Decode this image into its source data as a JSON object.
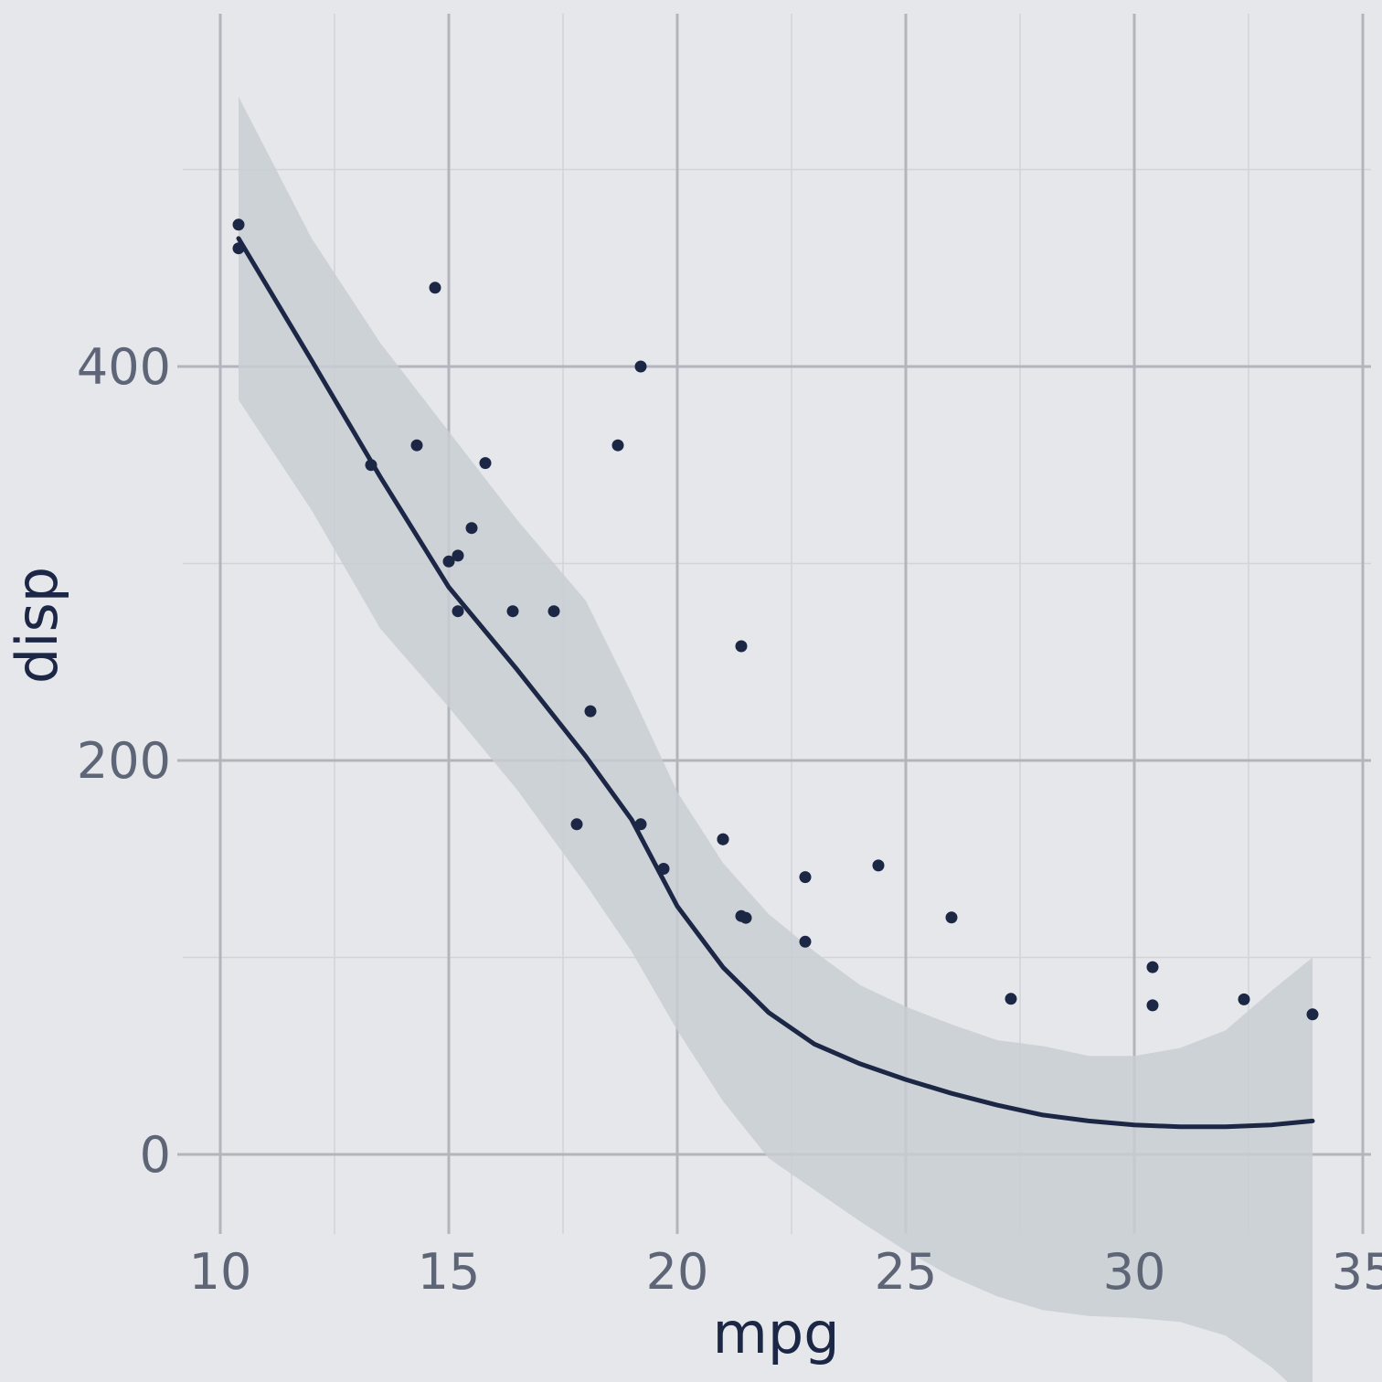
{
  "colors": {
    "background": "#e5e7eb",
    "panel": "#e5e7eb",
    "grid_major": "#b3b5bc",
    "grid_minor": "#d2d4da",
    "line": "#1b2745",
    "band": "#c9ced4",
    "tick_text": "#5d6577",
    "title_text": "#1b2745"
  },
  "chart_data": {
    "type": "scatter",
    "title": "",
    "xlabel": "mpg",
    "ylabel": "disp",
    "xlim": [
      9.0,
      35.0
    ],
    "ylim": [
      -35,
      575
    ],
    "x_ticks": [
      10,
      15,
      20,
      25,
      30,
      35
    ],
    "x_tick_labels": [
      "10",
      "15",
      "20",
      "25",
      "30",
      "35"
    ],
    "x_minor_ticks": [
      12.5,
      17.5,
      22.5,
      27.5,
      32.5
    ],
    "y_ticks": [
      0,
      200,
      400
    ],
    "y_tick_labels": [
      "0",
      "200",
      "400"
    ],
    "y_minor_ticks": [
      100,
      300,
      500
    ],
    "grid": true,
    "legend": "none",
    "points": [
      {
        "x": 21.0,
        "y": 160.0
      },
      {
        "x": 21.0,
        "y": 160.0
      },
      {
        "x": 22.8,
        "y": 108.0
      },
      {
        "x": 21.4,
        "y": 258.0
      },
      {
        "x": 18.7,
        "y": 360.0
      },
      {
        "x": 18.1,
        "y": 225.0
      },
      {
        "x": 14.3,
        "y": 360.0
      },
      {
        "x": 24.4,
        "y": 146.7
      },
      {
        "x": 22.8,
        "y": 140.8
      },
      {
        "x": 19.2,
        "y": 167.6
      },
      {
        "x": 17.8,
        "y": 167.6
      },
      {
        "x": 16.4,
        "y": 275.8
      },
      {
        "x": 17.3,
        "y": 275.8
      },
      {
        "x": 15.2,
        "y": 275.8
      },
      {
        "x": 10.4,
        "y": 472.0
      },
      {
        "x": 10.4,
        "y": 460.0
      },
      {
        "x": 14.7,
        "y": 440.0
      },
      {
        "x": 32.4,
        "y": 78.7
      },
      {
        "x": 30.4,
        "y": 75.7
      },
      {
        "x": 33.9,
        "y": 71.1
      },
      {
        "x": 21.5,
        "y": 120.1
      },
      {
        "x": 15.5,
        "y": 318.0
      },
      {
        "x": 15.2,
        "y": 304.0
      },
      {
        "x": 13.3,
        "y": 350.0
      },
      {
        "x": 19.2,
        "y": 400.0
      },
      {
        "x": 27.3,
        "y": 79.0
      },
      {
        "x": 26.0,
        "y": 120.3
      },
      {
        "x": 30.4,
        "y": 95.1
      },
      {
        "x": 15.8,
        "y": 351.0
      },
      {
        "x": 19.7,
        "y": 145.0
      },
      {
        "x": 15.0,
        "y": 301.0
      },
      {
        "x": 21.4,
        "y": 121.0
      }
    ],
    "smooth": {
      "x": [
        10.4,
        12.0,
        13.5,
        15.0,
        16.5,
        18.0,
        19.0,
        20.0,
        21.0,
        22.0,
        23.0,
        24.0,
        25.0,
        26.0,
        27.0,
        28.0,
        29.0,
        30.0,
        31.0,
        32.0,
        33.0,
        33.9
      ],
      "y": [
        465,
        403,
        344,
        288,
        246,
        202,
        170,
        126,
        95,
        72,
        56,
        46,
        38,
        31,
        25,
        20,
        17,
        15,
        14,
        14,
        15,
        17
      ],
      "lower": [
        383,
        327,
        267,
        227,
        185,
        137,
        103,
        63,
        27,
        -2,
        -18,
        -34,
        -49,
        -62,
        -72,
        -79,
        -82,
        -83,
        -85,
        -92,
        -108,
        -127
      ],
      "upper": [
        537,
        465,
        412,
        367,
        322,
        281,
        234,
        184,
        148,
        122,
        103,
        86,
        75,
        66,
        58,
        55,
        50,
        50,
        54,
        63,
        83,
        100
      ]
    }
  }
}
